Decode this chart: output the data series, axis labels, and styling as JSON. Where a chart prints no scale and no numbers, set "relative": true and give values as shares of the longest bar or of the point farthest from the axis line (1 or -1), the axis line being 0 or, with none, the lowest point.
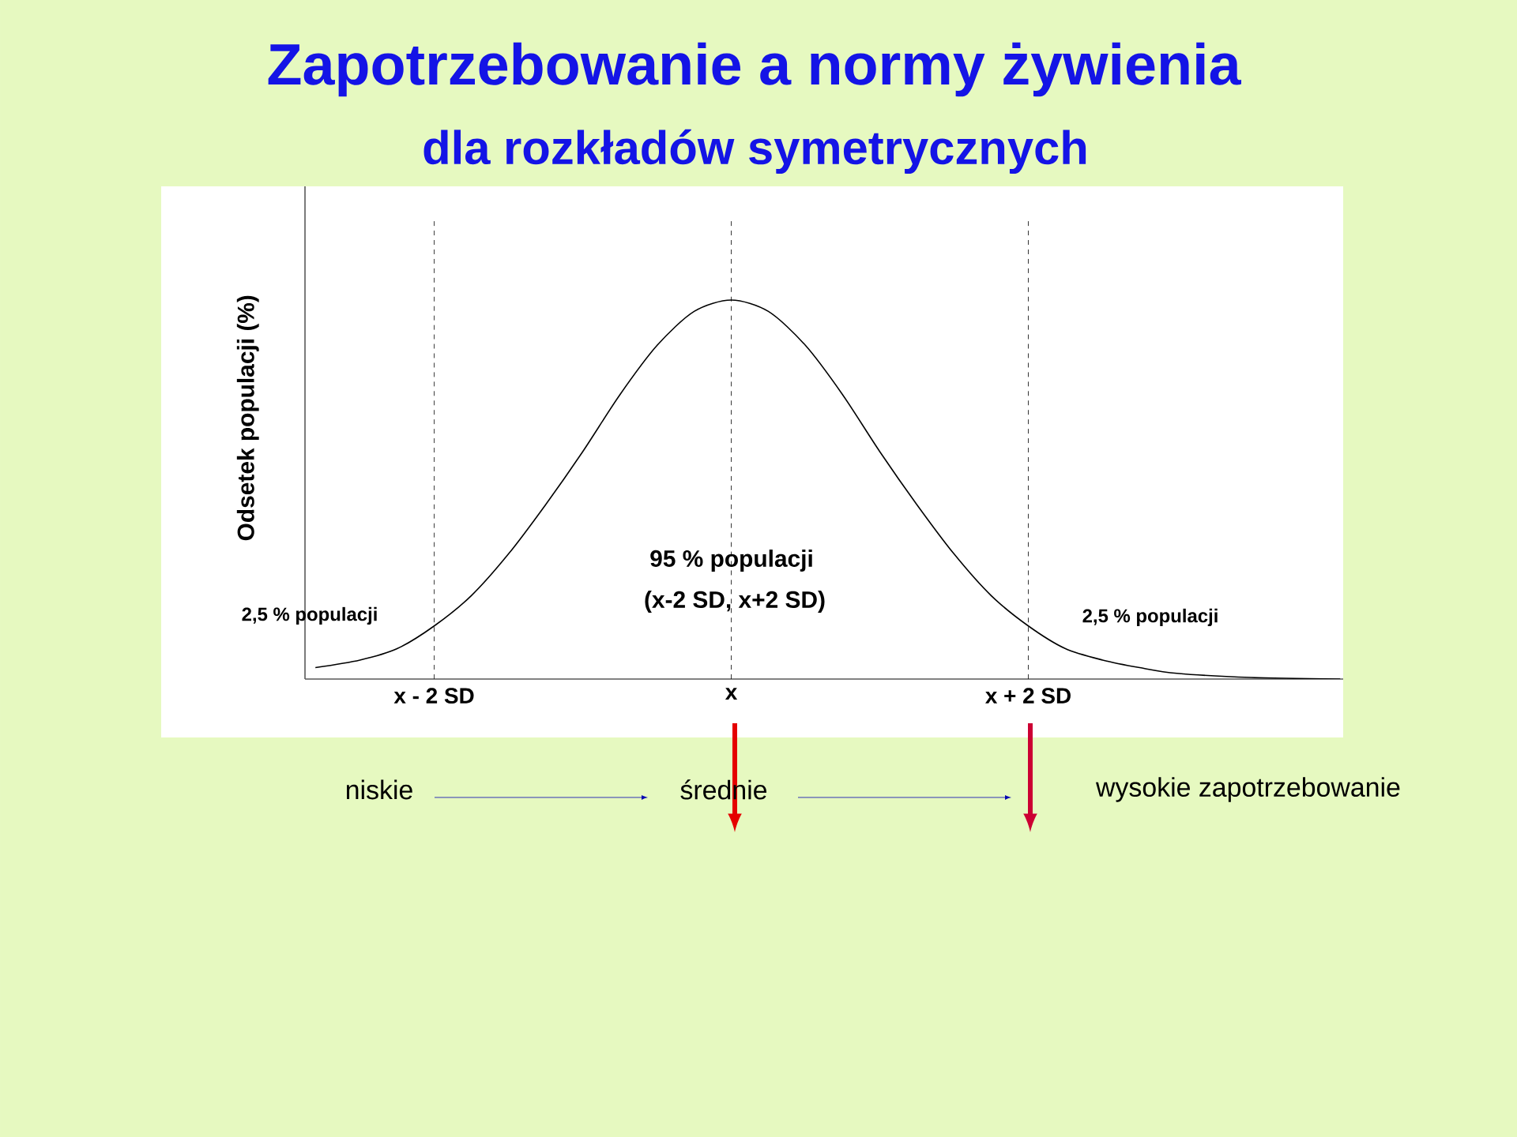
{
  "chart_data": {
    "type": "line",
    "title": "Zapotrzebowanie a normy żywienia",
    "subtitle": "dla rozkładów symetrycznych",
    "ylabel": "Odsetek populacji (%)",
    "relative": true,
    "x": [
      -2.8,
      -2.5,
      -2.25,
      -2,
      -1.75,
      -1.5,
      -1.25,
      -1,
      -0.75,
      -0.5,
      -0.25,
      0,
      0.25,
      0.5,
      0.75,
      1,
      1.25,
      1.5,
      1.75,
      2,
      2.25,
      2.5,
      2.75,
      3,
      3.5,
      4.1
    ],
    "series": [
      {
        "color": "#000000",
        "values": [
          0.03,
          0.05,
          0.08,
          0.14,
          0.22,
          0.33,
          0.46,
          0.6,
          0.75,
          0.88,
          0.97,
          1,
          0.97,
          0.88,
          0.75,
          0.6,
          0.46,
          0.33,
          0.22,
          0.14,
          0.08,
          0.05,
          0.03,
          0.015,
          0.004,
          0
        ]
      }
    ],
    "xlim": [
      -2.87,
      4.12
    ],
    "xticks": [
      {
        "value": -2,
        "label": "x - 2 SD"
      },
      {
        "value": 0,
        "label": "x"
      },
      {
        "value": 2,
        "label": "x + 2 SD"
      }
    ],
    "ref_lines": [
      {
        "axis": "x",
        "value": -2,
        "line_style": "dashed"
      },
      {
        "axis": "x",
        "value": 0,
        "line_style": "dashed"
      },
      {
        "axis": "x",
        "value": 2,
        "line_style": "dashed"
      }
    ],
    "grid": false,
    "marker": "none",
    "line_style": "solid",
    "annotations": [
      "95 % populacji",
      "(x-2 SD, x+2 SD)",
      "2,5 % populacji",
      "2,5 % populacji",
      "niskie",
      "średnie",
      "wysokie zapotrzebowanie"
    ]
  }
}
